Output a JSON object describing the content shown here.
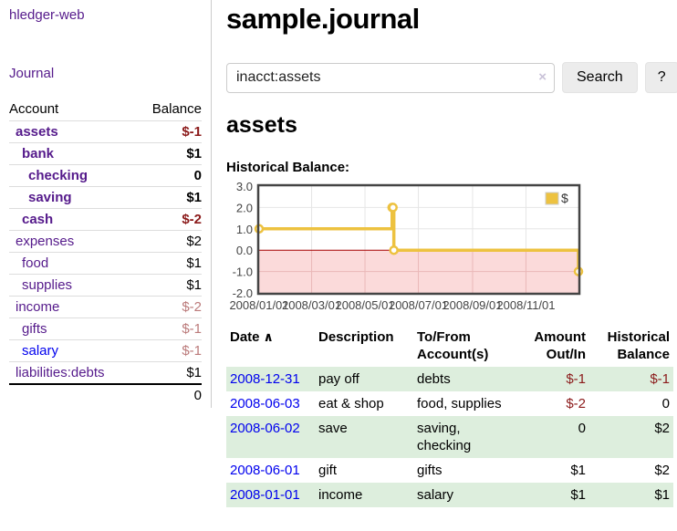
{
  "app": {
    "brand": "hledger-web"
  },
  "sidebar": {
    "nav": [
      {
        "label": "Journal"
      }
    ],
    "accounts_table": {
      "headers": {
        "account": "Account",
        "balance": "Balance"
      },
      "rows": [
        {
          "name": "assets",
          "balance": "$-1",
          "depth": 1,
          "bold": true,
          "balance_style": "neg-strong"
        },
        {
          "name": "bank",
          "balance": "$1",
          "depth": 2,
          "bold": true,
          "balance_style": "pos"
        },
        {
          "name": "checking",
          "balance": "0",
          "depth": 3,
          "bold": true,
          "balance_style": "pos"
        },
        {
          "name": "saving",
          "balance": "$1",
          "depth": 3,
          "bold": true,
          "balance_style": "pos"
        },
        {
          "name": "cash",
          "balance": "$-2",
          "depth": 2,
          "bold": true,
          "balance_style": "neg-strong"
        },
        {
          "name": "expenses",
          "balance": "$2",
          "depth": 1,
          "bold": false,
          "balance_style": "pos"
        },
        {
          "name": "food",
          "balance": "$1",
          "depth": 2,
          "bold": false,
          "balance_style": "pos"
        },
        {
          "name": "supplies",
          "balance": "$1",
          "depth": 2,
          "bold": false,
          "balance_style": "pos"
        },
        {
          "name": "income",
          "balance": "$-2",
          "depth": 1,
          "bold": false,
          "balance_style": "neg-soft"
        },
        {
          "name": "gifts",
          "balance": "$-1",
          "depth": 2,
          "bold": false,
          "balance_style": "neg-soft"
        },
        {
          "name": "salary",
          "balance": "$-1",
          "depth": 2,
          "bold": false,
          "balance_style": "neg-soft",
          "link_style": "unvisited"
        },
        {
          "name": "liabilities:debts",
          "balance": "$1",
          "depth": 1,
          "bold": false,
          "balance_style": "pos"
        }
      ],
      "total": "0"
    }
  },
  "header": {
    "title": "sample.journal"
  },
  "search": {
    "value": "inacct:assets",
    "clear_icon": "×",
    "button": "Search",
    "help_button": "?"
  },
  "account_page": {
    "title": "assets",
    "chart_label": "Historical Balance:"
  },
  "chart_data": {
    "type": "line",
    "style": "step-after",
    "title": "Historical Balance",
    "series": [
      {
        "name": "$",
        "color": "#edc240",
        "points": [
          [
            "2008-01-01",
            1
          ],
          [
            "2008-06-01",
            2
          ],
          [
            "2008-06-02",
            2
          ],
          [
            "2008-06-03",
            0
          ],
          [
            "2008-12-31",
            -1
          ]
        ]
      }
    ],
    "x_range": [
      "2008-01-01",
      "2008-12-31"
    ],
    "x_ticks": [
      "2008/01/01",
      "2008/03/01",
      "2008/05/01",
      "2008/07/01",
      "2008/09/01",
      "2008/11/01"
    ],
    "y_ticks": [
      3.0,
      2.0,
      1.0,
      0.0,
      -1.0,
      -2.0
    ],
    "ylim": [
      -2,
      3
    ],
    "grid": true,
    "legend_position": "top-right",
    "colors": {
      "line": "#edc240",
      "marker_fill": "#ffffff",
      "negative_region": "#fbdada",
      "zero_line": "#a40000",
      "gridline": "#e6e6e6",
      "gridline_negative": "#eab8b8",
      "border": "#444444",
      "tick_text": "#444444",
      "legend_swatch_border": "#cccccc"
    }
  },
  "register_table": {
    "headers": {
      "date": "Date",
      "sort_icon": "∧",
      "description": "Description",
      "accounts": "To/From Account(s)",
      "amount": "Amount Out/In",
      "balance": "Historical Balance"
    },
    "rows": [
      {
        "date": "2008-12-31",
        "description": "pay off",
        "accounts": "debts",
        "amount": "$-1",
        "amount_style": "neg-strong",
        "balance": "$-1",
        "balance_style": "neg-strong",
        "shaded": true
      },
      {
        "date": "2008-06-03",
        "description": "eat & shop",
        "accounts": "food, supplies",
        "amount": "$-2",
        "amount_style": "neg-strong",
        "balance": "0",
        "balance_style": "pos",
        "shaded": false
      },
      {
        "date": "2008-06-02",
        "description": "save",
        "accounts": "saving, checking",
        "amount": "0",
        "amount_style": "pos",
        "balance": "$2",
        "balance_style": "pos",
        "shaded": true
      },
      {
        "date": "2008-06-01",
        "description": "gift",
        "accounts": "gifts",
        "amount": "$1",
        "amount_style": "pos",
        "balance": "$2",
        "balance_style": "pos",
        "shaded": false
      },
      {
        "date": "2008-01-01",
        "description": "income",
        "accounts": "salary",
        "amount": "$1",
        "amount_style": "pos",
        "balance": "$1",
        "balance_style": "pos",
        "shaded": true
      }
    ]
  }
}
